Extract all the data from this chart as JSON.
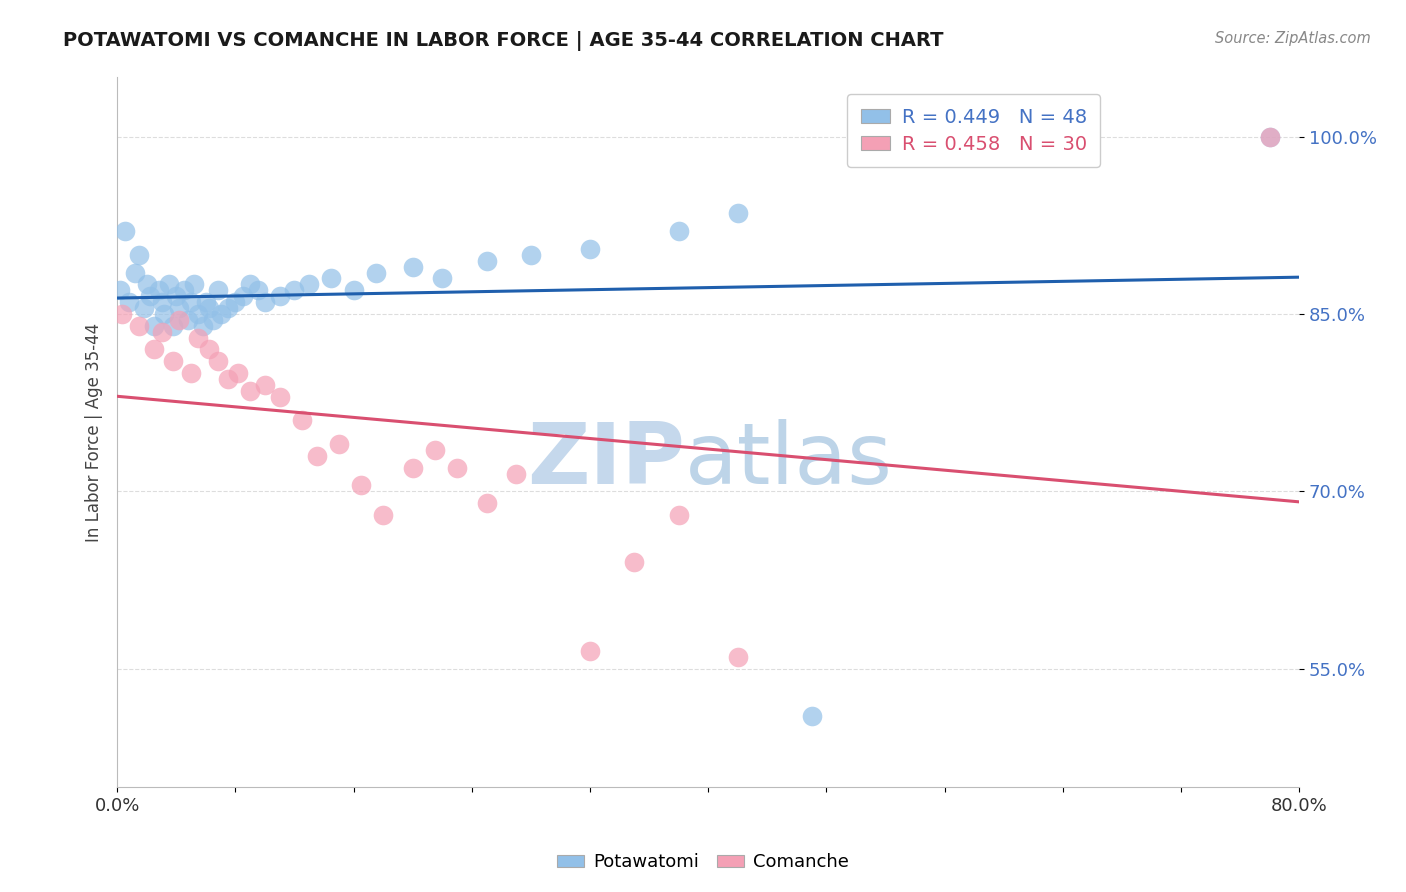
{
  "title": "POTAWATOMI VS COMANCHE IN LABOR FORCE | AGE 35-44 CORRELATION CHART",
  "source_text": "Source: ZipAtlas.com",
  "ylabel": "In Labor Force | Age 35-44",
  "xlim": [
    0.0,
    0.8
  ],
  "ylim": [
    0.45,
    1.05
  ],
  "ytick_positions": [
    0.55,
    0.7,
    0.85,
    1.0
  ],
  "ytick_labels": [
    "55.0%",
    "70.0%",
    "85.0%",
    "100.0%"
  ],
  "r_potawatomi": 0.449,
  "n_potawatomi": 48,
  "r_comanche": 0.458,
  "n_comanche": 30,
  "blue_color": "#92C0E8",
  "pink_color": "#F4A0B5",
  "blue_line_color": "#1F5FAD",
  "pink_line_color": "#D94F70",
  "legend_blue_text_color": "#4472C4",
  "legend_pink_text_color": "#D94F70",
  "ytick_color": "#4472C4",
  "watermark_zip_color": "#C5D8EC",
  "watermark_atlas_color": "#BDD4E8",
  "grid_color": "#DDDDDD",
  "background_color": "#FFFFFF",
  "potawatomi_x": [
    0.002,
    0.005,
    0.008,
    0.012,
    0.015,
    0.018,
    0.02,
    0.022,
    0.025,
    0.028,
    0.03,
    0.032,
    0.035,
    0.038,
    0.04,
    0.042,
    0.045,
    0.048,
    0.05,
    0.052,
    0.055,
    0.058,
    0.06,
    0.062,
    0.065,
    0.068,
    0.07,
    0.075,
    0.08,
    0.085,
    0.09,
    0.095,
    0.1,
    0.11,
    0.12,
    0.13,
    0.145,
    0.16,
    0.175,
    0.2,
    0.22,
    0.25,
    0.28,
    0.32,
    0.38,
    0.42,
    0.47,
    0.78
  ],
  "potawatomi_y": [
    0.87,
    0.92,
    0.86,
    0.885,
    0.9,
    0.855,
    0.875,
    0.865,
    0.84,
    0.87,
    0.86,
    0.85,
    0.875,
    0.84,
    0.865,
    0.855,
    0.87,
    0.845,
    0.86,
    0.875,
    0.85,
    0.84,
    0.86,
    0.855,
    0.845,
    0.87,
    0.85,
    0.855,
    0.86,
    0.865,
    0.875,
    0.87,
    0.86,
    0.865,
    0.87,
    0.875,
    0.88,
    0.87,
    0.885,
    0.89,
    0.88,
    0.895,
    0.9,
    0.905,
    0.92,
    0.935,
    0.51,
    1.0
  ],
  "comanche_x": [
    0.003,
    0.015,
    0.025,
    0.03,
    0.038,
    0.042,
    0.05,
    0.055,
    0.062,
    0.068,
    0.075,
    0.082,
    0.09,
    0.1,
    0.11,
    0.125,
    0.135,
    0.15,
    0.165,
    0.18,
    0.2,
    0.215,
    0.23,
    0.25,
    0.27,
    0.32,
    0.35,
    0.38,
    0.42,
    0.78
  ],
  "comanche_y": [
    0.85,
    0.84,
    0.82,
    0.835,
    0.81,
    0.845,
    0.8,
    0.83,
    0.82,
    0.81,
    0.795,
    0.8,
    0.785,
    0.79,
    0.78,
    0.76,
    0.73,
    0.74,
    0.705,
    0.68,
    0.72,
    0.735,
    0.72,
    0.69,
    0.715,
    0.565,
    0.64,
    0.68,
    0.56,
    1.0
  ]
}
